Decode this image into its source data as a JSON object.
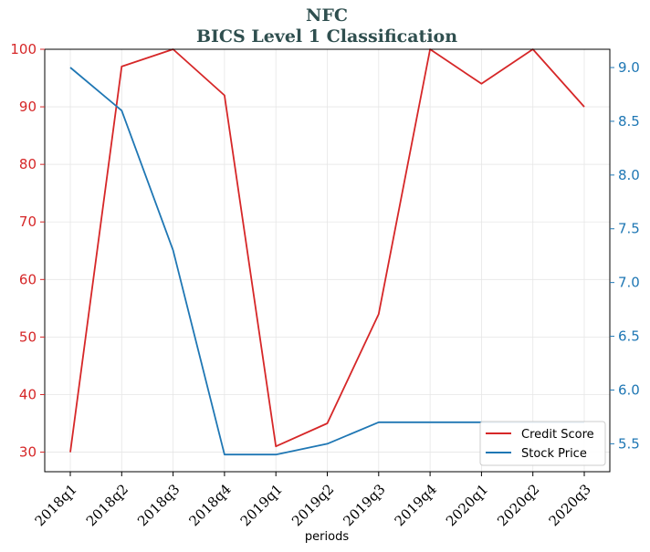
{
  "chart_data": {
    "type": "line",
    "title": "NFC",
    "subtitle": "BICS Level 1 Classification",
    "xlabel": "periods",
    "categories": [
      "2018q1",
      "2018q2",
      "2018q3",
      "2018q4",
      "2019q1",
      "2019q2",
      "2019q3",
      "2019q4",
      "2020q1",
      "2020q2",
      "2020q3"
    ],
    "y_left": {
      "ylim": [
        26.6,
        100
      ],
      "ticks": [
        30,
        40,
        50,
        60,
        70,
        80,
        90,
        100
      ]
    },
    "y_right": {
      "ylim": [
        5.24,
        9.17
      ],
      "ticks": [
        5.5,
        6.0,
        6.5,
        7.0,
        7.5,
        8.0,
        8.5,
        9.0
      ],
      "tick_labels": [
        "5.5",
        "6.0",
        "6.5",
        "7.0",
        "7.5",
        "8.0",
        "8.5",
        "9.0"
      ]
    },
    "series": [
      {
        "name": "Credit Score",
        "axis": "left",
        "color": "#d62728",
        "values": [
          30,
          97,
          100,
          92,
          31,
          35,
          54,
          100,
          94,
          100,
          90
        ]
      },
      {
        "name": "Stock Price",
        "axis": "right",
        "color": "#1f77b4",
        "values": [
          9.0,
          8.6,
          7.3,
          5.4,
          5.4,
          5.5,
          5.7,
          5.7,
          5.7,
          5.7,
          5.7
        ]
      }
    ],
    "grid": true,
    "legend_position": "bottom-right",
    "colors": {
      "title": "#2f4f4f",
      "left_axis": "#d62728",
      "right_axis": "#1f77b4"
    }
  }
}
